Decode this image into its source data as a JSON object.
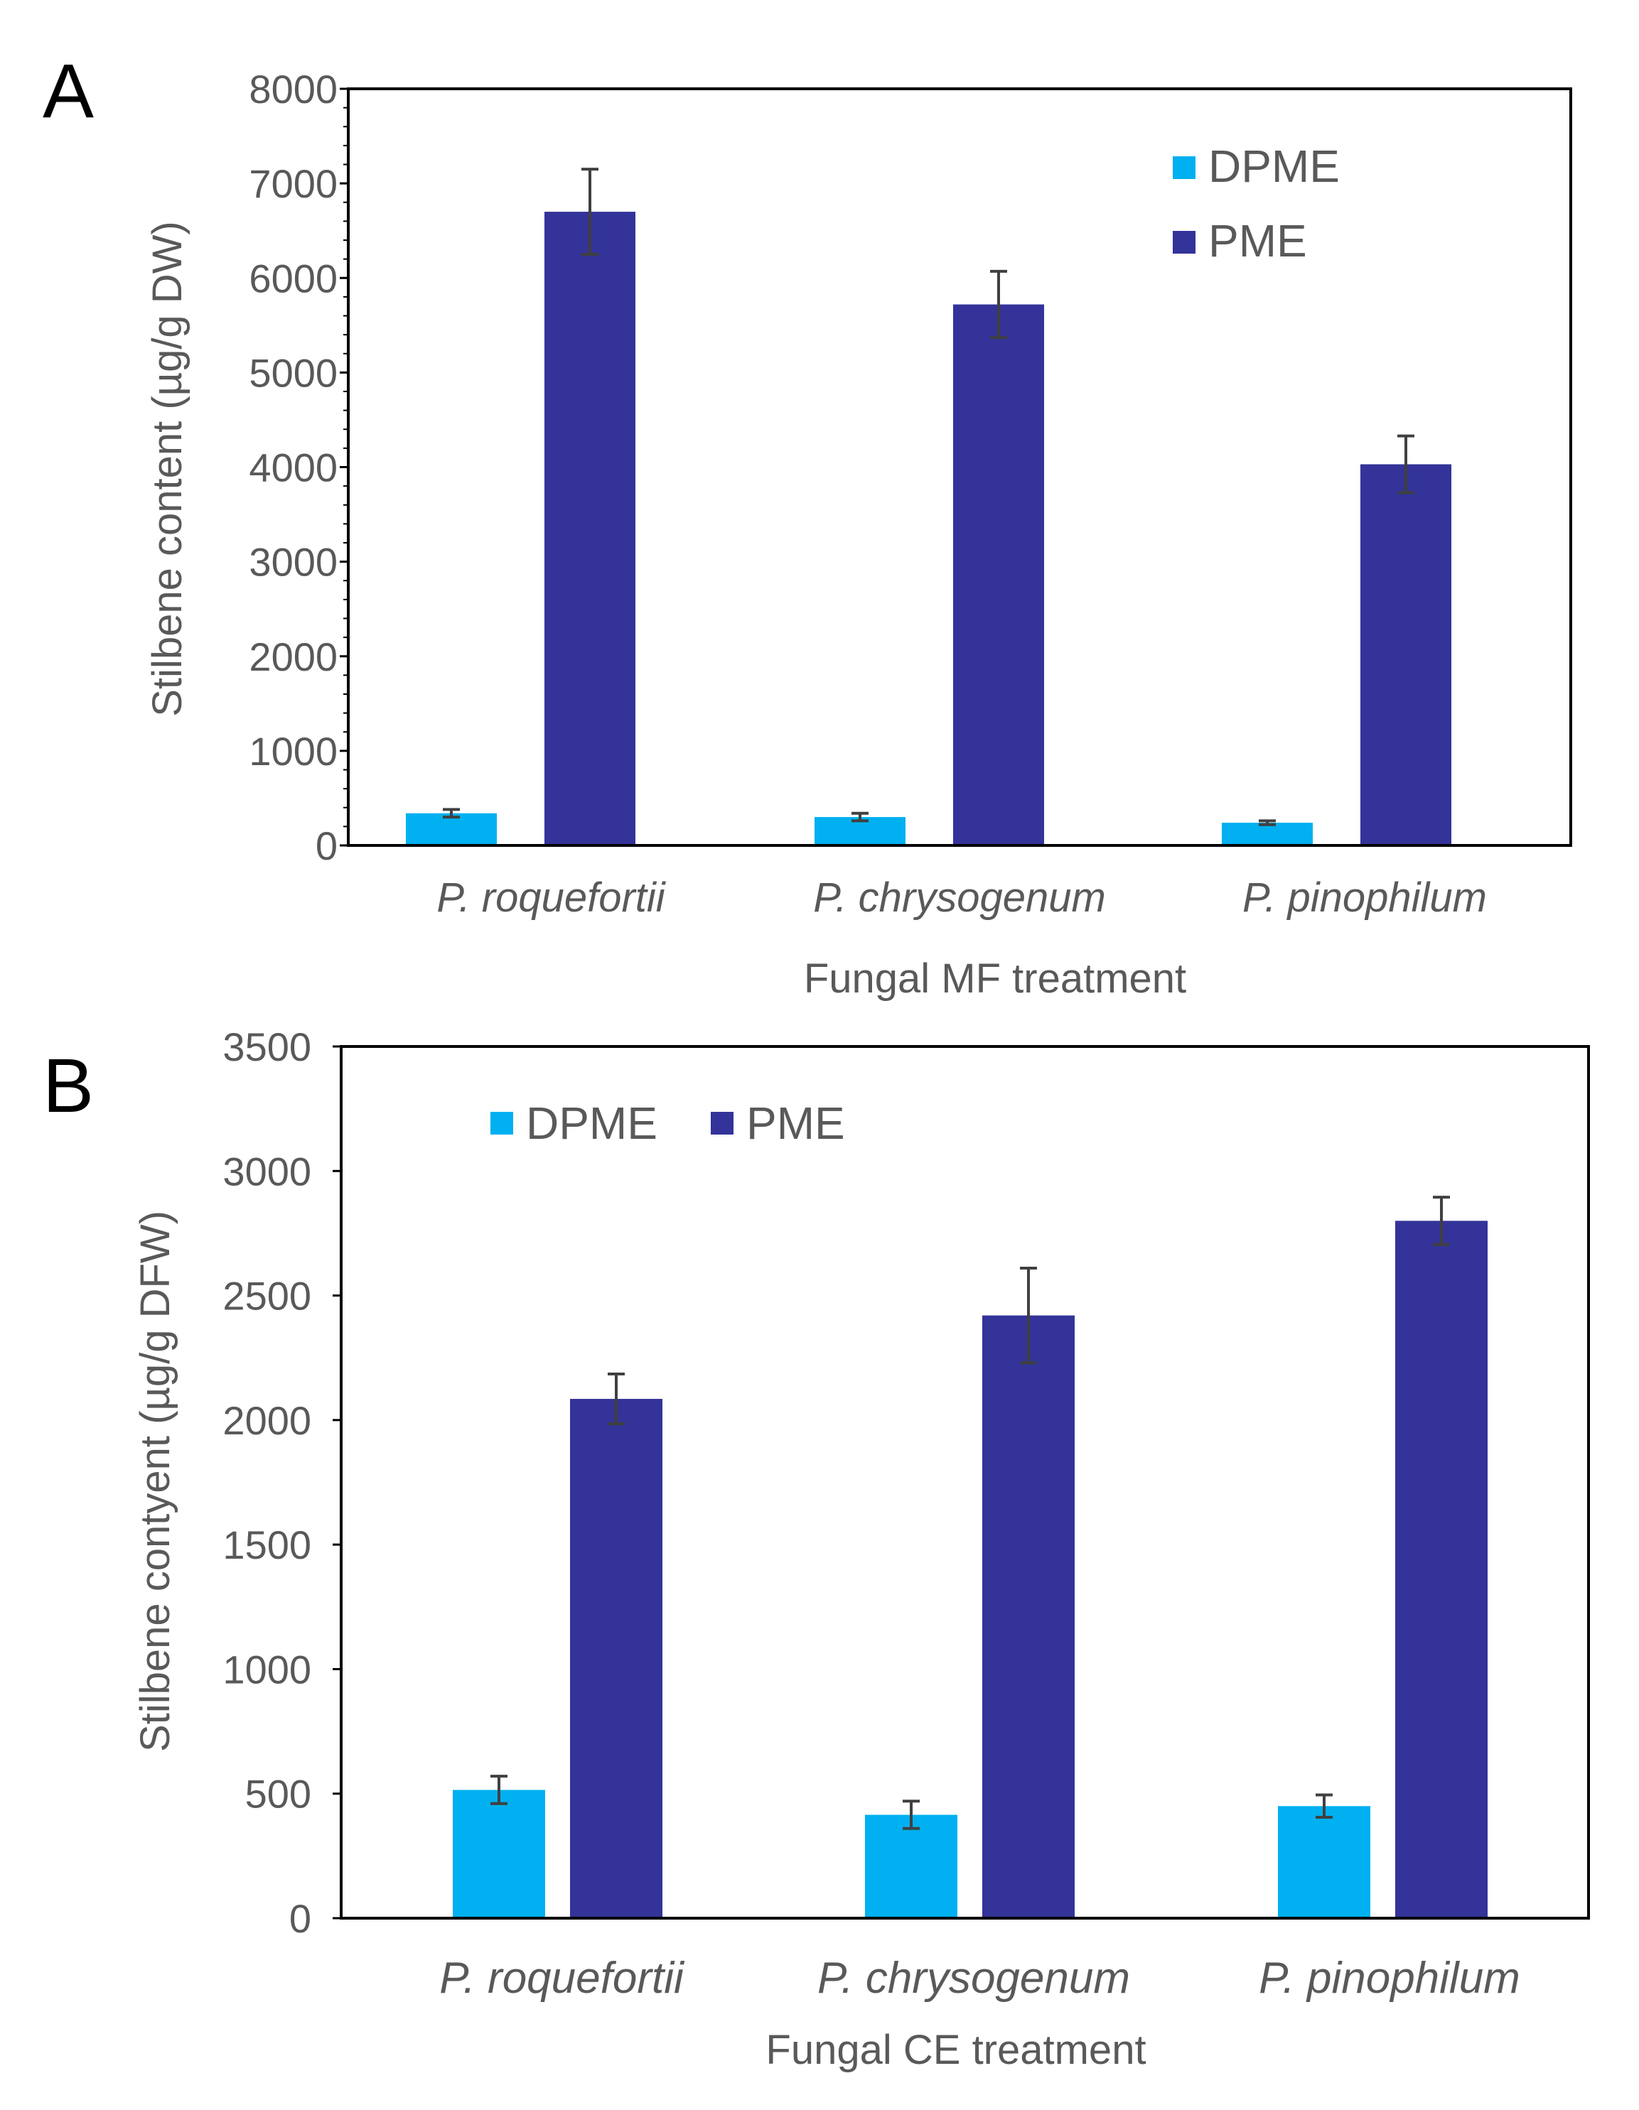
{
  "colors": {
    "dpme": "#00B0F0",
    "pme": "#333399",
    "axis": "#000000",
    "text": "#595959",
    "errorbar": "#404040"
  },
  "chart_data": [
    {
      "panel": "A",
      "type": "bar",
      "title": "",
      "xlabel": "Fungal MF treatment",
      "ylabel": "Stilbene content (µg/g DW)",
      "categories": [
        "P. roquefortii",
        "P. chrysogenum",
        "P. pinophilum"
      ],
      "ylim": [
        0,
        8000
      ],
      "yticks": [
        0,
        1000,
        2000,
        3000,
        4000,
        5000,
        6000,
        7000,
        8000
      ],
      "minor_ticks": true,
      "grid": false,
      "legend": {
        "position": "top-right",
        "layout": "vertical"
      },
      "series": [
        {
          "name": "DPME",
          "values": [
            340,
            300,
            240
          ],
          "errors": [
            40,
            40,
            20
          ]
        },
        {
          "name": "PME",
          "values": [
            6700,
            5720,
            4030
          ],
          "errors": [
            450,
            350,
            300
          ]
        }
      ]
    },
    {
      "panel": "B",
      "type": "bar",
      "title": "",
      "xlabel": "Fungal CE treatment",
      "ylabel": "Stilbene contyent (µg/g DFW)",
      "categories": [
        "P. roquefortii",
        "P. chrysogenum",
        "P. pinophilum"
      ],
      "ylim": [
        0,
        3500
      ],
      "yticks": [
        0,
        500,
        1000,
        1500,
        2000,
        2500,
        3000,
        3500
      ],
      "minor_ticks": false,
      "grid": false,
      "legend": {
        "position": "top-left",
        "layout": "horizontal"
      },
      "series": [
        {
          "name": "DPME",
          "values": [
            515,
            415,
            450
          ],
          "errors": [
            55,
            55,
            45
          ]
        },
        {
          "name": "PME",
          "values": [
            2085,
            2420,
            2800
          ],
          "errors": [
            100,
            190,
            95
          ]
        }
      ]
    }
  ]
}
